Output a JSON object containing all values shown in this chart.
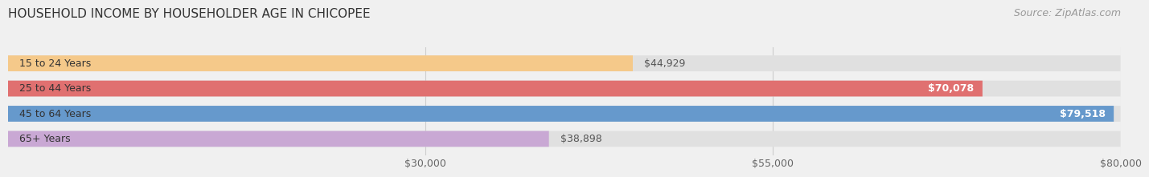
{
  "title": "HOUSEHOLD INCOME BY HOUSEHOLDER AGE IN CHICOPEE",
  "source": "Source: ZipAtlas.com",
  "categories": [
    "15 to 24 Years",
    "25 to 44 Years",
    "45 to 64 Years",
    "65+ Years"
  ],
  "values": [
    44929,
    70078,
    79518,
    38898
  ],
  "bar_colors": [
    "#f5c98a",
    "#e07070",
    "#6699cc",
    "#c9a8d4"
  ],
  "bar_edge_colors": [
    "#e8b070",
    "#c85050",
    "#4477aa",
    "#aa88bb"
  ],
  "label_colors": [
    "#555555",
    "#ffffff",
    "#ffffff",
    "#555555"
  ],
  "value_labels": [
    "$44,929",
    "$70,078",
    "$79,518",
    "$38,898"
  ],
  "xlim": [
    0,
    80000
  ],
  "xticks": [
    30000,
    55000,
    80000
  ],
  "xtick_labels": [
    "$30,000",
    "$55,000",
    "$80,000"
  ],
  "background_color": "#f0f0f0",
  "bar_background_color": "#e0e0e0",
  "title_fontsize": 11,
  "source_fontsize": 9,
  "label_fontsize": 9,
  "value_fontsize": 9,
  "tick_fontsize": 9,
  "bar_height": 0.55
}
